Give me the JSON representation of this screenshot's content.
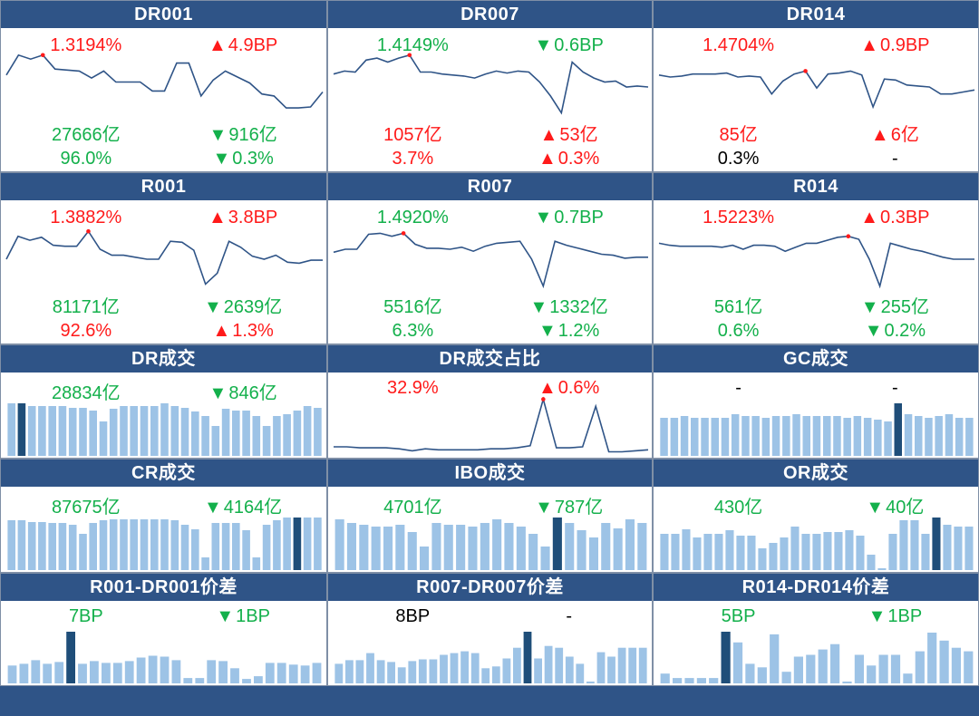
{
  "colors": {
    "header_bg": "#2f5487",
    "up": "#ff1a1a",
    "down": "#13b04b",
    "neutral": "#000000",
    "bar_light": "#9dc3e6",
    "bar_dark": "#1f4e79",
    "line": "#2f5487"
  },
  "panels": [
    {
      "id": "dr001",
      "title": "DR001",
      "chart": "line",
      "values": [
        42,
        62,
        58,
        62,
        48,
        47,
        46,
        39,
        46,
        35,
        35,
        35,
        26,
        26,
        54,
        54,
        21,
        37,
        46,
        40,
        34,
        23,
        21,
        9,
        9,
        10,
        25
      ],
      "highlight": 3,
      "rows": [
        [
          {
            "text": "1.3194%",
            "color": "red"
          },
          {
            "arrow": "▲",
            "text": "4.9BP",
            "color": "red"
          }
        ],
        [
          {
            "text": "27666亿",
            "color": "green"
          },
          {
            "arrow": "▼",
            "text": "916亿",
            "color": "green"
          }
        ],
        [
          {
            "text": "96.0%",
            "color": "green"
          },
          {
            "arrow": "▼",
            "text": "0.3%",
            "color": "green"
          }
        ]
      ]
    },
    {
      "id": "dr007",
      "title": "DR007",
      "chart": "line",
      "values": [
        43,
        46,
        45,
        57,
        59,
        55,
        59,
        62,
        45,
        45,
        43,
        42,
        41,
        39,
        43,
        46,
        44,
        46,
        45,
        35,
        21,
        4,
        55,
        45,
        39,
        35,
        36,
        30,
        31,
        30
      ],
      "highlight": 7,
      "rows": [
        [
          {
            "text": "1.4149%",
            "color": "green"
          },
          {
            "arrow": "▼",
            "text": "0.6BP",
            "color": "green"
          }
        ],
        [
          {
            "text": "1057亿",
            "color": "red"
          },
          {
            "arrow": "▲",
            "text": "53亿",
            "color": "red"
          }
        ],
        [
          {
            "text": "3.7%",
            "color": "red"
          },
          {
            "arrow": "▲",
            "text": "0.3%",
            "color": "red"
          }
        ]
      ]
    },
    {
      "id": "dr014",
      "title": "DR014",
      "chart": "line",
      "values": [
        42,
        40,
        41,
        43,
        43,
        43,
        44,
        40,
        41,
        40,
        23,
        36,
        43,
        46,
        29,
        43,
        44,
        46,
        42,
        10,
        38,
        37,
        32,
        31,
        30,
        23,
        23,
        25,
        27
      ],
      "highlight": 13,
      "rows": [
        [
          {
            "text": "1.4704%",
            "color": "red"
          },
          {
            "arrow": "▲",
            "text": "0.9BP",
            "color": "red"
          }
        ],
        [
          {
            "text": "85亿",
            "color": "red"
          },
          {
            "arrow": "▲",
            "text": "6亿",
            "color": "red"
          }
        ],
        [
          {
            "text": "0.3%",
            "color": "black"
          },
          {
            "text": "-",
            "color": "black"
          }
        ]
      ]
    },
    {
      "id": "r001",
      "title": "R001",
      "chart": "line",
      "values": [
        30,
        53,
        49,
        52,
        44,
        43,
        43,
        58,
        40,
        34,
        34,
        32,
        30,
        30,
        48,
        47,
        39,
        5,
        16,
        48,
        42,
        33,
        30,
        34,
        27,
        26,
        29,
        29
      ],
      "highlight": 7,
      "rows": [
        [
          {
            "text": "1.3882%",
            "color": "red"
          },
          {
            "arrow": "▲",
            "text": "3.8BP",
            "color": "red"
          }
        ],
        [
          {
            "text": "81171亿",
            "color": "green"
          },
          {
            "arrow": "▼",
            "text": "2639亿",
            "color": "green"
          }
        ],
        [
          {
            "text": "92.6%",
            "color": "red"
          },
          {
            "arrow": "▲",
            "text": "1.3%",
            "color": "red"
          }
        ]
      ]
    },
    {
      "id": "r007",
      "title": "R007",
      "chart": "line",
      "values": [
        37,
        40,
        40,
        55,
        56,
        53,
        56,
        45,
        41,
        41,
        40,
        42,
        38,
        43,
        46,
        47,
        48,
        30,
        3,
        48,
        44,
        41,
        38,
        35,
        34,
        31,
        32,
        32
      ],
      "highlight": 6,
      "rows": [
        [
          {
            "text": "1.4920%",
            "color": "green"
          },
          {
            "arrow": "▼",
            "text": "0.7BP",
            "color": "green"
          }
        ],
        [
          {
            "text": "5516亿",
            "color": "green"
          },
          {
            "arrow": "▼",
            "text": "1332亿",
            "color": "green"
          }
        ],
        [
          {
            "text": "6.3%",
            "color": "green"
          },
          {
            "arrow": "▼",
            "text": "1.2%",
            "color": "green"
          }
        ]
      ]
    },
    {
      "id": "r014",
      "title": "R014",
      "chart": "line",
      "values": [
        46,
        44,
        43,
        43,
        43,
        43,
        42,
        44,
        40,
        44,
        44,
        43,
        38,
        42,
        46,
        46,
        49,
        52,
        53,
        50,
        30,
        3,
        46,
        43,
        40,
        38,
        35,
        32,
        30,
        30,
        30
      ],
      "highlight": 18,
      "rows": [
        [
          {
            "text": "1.5223%",
            "color": "red"
          },
          {
            "arrow": "▲",
            "text": "0.3BP",
            "color": "red"
          }
        ],
        [
          {
            "text": "561亿",
            "color": "green"
          },
          {
            "arrow": "▼",
            "text": "255亿",
            "color": "green"
          }
        ],
        [
          {
            "text": "0.6%",
            "color": "green"
          },
          {
            "arrow": "▼",
            "text": "0.2%",
            "color": "green"
          }
        ]
      ]
    },
    {
      "id": "dr-volume",
      "title": "DR成交",
      "chart": "bar",
      "values": [
        58,
        58,
        55,
        55,
        55,
        55,
        53,
        53,
        50,
        38,
        52,
        55,
        55,
        55,
        55,
        58,
        55,
        53,
        49,
        44,
        33,
        52,
        50,
        50,
        44,
        33,
        44,
        46,
        50,
        55,
        53
      ],
      "highlight": 1,
      "rows": [
        [
          {
            "text": "28834亿",
            "color": "green"
          },
          {
            "arrow": "▼",
            "text": "846亿",
            "color": "green"
          }
        ]
      ]
    },
    {
      "id": "dr-volume-ratio",
      "title": "DR成交占比",
      "chart": "line",
      "values": [
        9,
        9,
        8,
        8,
        8,
        7,
        5,
        7,
        6,
        6,
        6,
        6,
        7,
        7,
        8,
        10,
        56,
        8,
        8,
        9,
        49,
        4,
        4,
        5,
        6
      ],
      "highlight": 16,
      "rows": [
        [
          {
            "text": "32.9%",
            "color": "red"
          },
          {
            "arrow": "▲",
            "text": "0.6%",
            "color": "red"
          }
        ]
      ]
    },
    {
      "id": "gc-volume",
      "title": "GC成交",
      "chart": "bar",
      "values": [
        42,
        42,
        44,
        42,
        42,
        42,
        42,
        46,
        44,
        44,
        42,
        44,
        44,
        46,
        44,
        44,
        44,
        44,
        42,
        44,
        42,
        40,
        38,
        58,
        46,
        44,
        42,
        44,
        46,
        42,
        42
      ],
      "highlight": 23,
      "rows": [
        [
          {
            "text": "-",
            "color": "black"
          },
          {
            "text": "-",
            "color": "black"
          }
        ]
      ]
    },
    {
      "id": "cr-volume",
      "title": "CR成交",
      "chart": "bar",
      "values": [
        55,
        55,
        53,
        53,
        52,
        52,
        50,
        40,
        52,
        55,
        56,
        56,
        56,
        56,
        56,
        56,
        55,
        50,
        45,
        14,
        52,
        52,
        52,
        44,
        14,
        50,
        55,
        58,
        58,
        58,
        58
      ],
      "highlight": 28,
      "rows": [
        [
          {
            "text": "87675亿",
            "color": "green"
          },
          {
            "arrow": "▼",
            "text": "4164亿",
            "color": "green"
          }
        ]
      ]
    },
    {
      "id": "ibo-volume",
      "title": "IBO成交",
      "chart": "bar",
      "values": [
        56,
        52,
        50,
        48,
        48,
        50,
        42,
        26,
        52,
        50,
        50,
        48,
        52,
        56,
        52,
        48,
        40,
        26,
        58,
        52,
        44,
        36,
        52,
        46,
        56,
        52
      ],
      "highlight": 18,
      "rows": [
        [
          {
            "text": "4701亿",
            "color": "green"
          },
          {
            "arrow": "▼",
            "text": "787亿",
            "color": "green"
          }
        ]
      ]
    },
    {
      "id": "or-volume",
      "title": "OR成交",
      "chart": "bar",
      "values": [
        40,
        40,
        45,
        36,
        40,
        40,
        44,
        38,
        38,
        24,
        30,
        36,
        48,
        40,
        40,
        42,
        42,
        44,
        38,
        17,
        2,
        40,
        55,
        55,
        40,
        58,
        50,
        48,
        48
      ],
      "highlight": 25,
      "rows": [
        [
          {
            "text": "430亿",
            "color": "green"
          },
          {
            "arrow": "▼",
            "text": "40亿",
            "color": "green"
          }
        ]
      ]
    },
    {
      "id": "r001-dr001-spread",
      "title": "R001-DR001价差",
      "chart": "bar",
      "values": [
        20,
        22,
        26,
        22,
        24,
        58,
        22,
        25,
        23,
        23,
        25,
        29,
        31,
        30,
        26,
        6,
        6,
        26,
        25,
        17,
        5,
        8,
        23,
        23,
        21,
        20,
        23
      ],
      "highlight": 5,
      "rows": [
        [
          {
            "text": "7BP",
            "color": "green"
          },
          {
            "arrow": "▼",
            "text": "1BP",
            "color": "green"
          }
        ]
      ]
    },
    {
      "id": "r007-dr007-spread",
      "title": "R007-DR007价差",
      "chart": "bar",
      "values": [
        22,
        26,
        26,
        34,
        26,
        24,
        18,
        25,
        27,
        27,
        32,
        34,
        36,
        34,
        17,
        19,
        28,
        40,
        58,
        28,
        42,
        40,
        30,
        22,
        2,
        35,
        30,
        40,
        40,
        40
      ],
      "highlight": 18,
      "rows": [
        [
          {
            "text": "8BP",
            "color": "black"
          },
          {
            "text": "-",
            "color": "black"
          }
        ]
      ]
    },
    {
      "id": "r014-dr014-spread",
      "title": "R014-DR014价差",
      "chart": "bar",
      "values": [
        11,
        6,
        6,
        6,
        6,
        58,
        46,
        22,
        18,
        55,
        13,
        30,
        32,
        38,
        44,
        2,
        32,
        20,
        32,
        32,
        11,
        36,
        57,
        48,
        40,
        36
      ],
      "highlight": 5,
      "rows": [
        [
          {
            "text": "5BP",
            "color": "green"
          },
          {
            "arrow": "▼",
            "text": "1BP",
            "color": "green"
          }
        ]
      ]
    }
  ]
}
